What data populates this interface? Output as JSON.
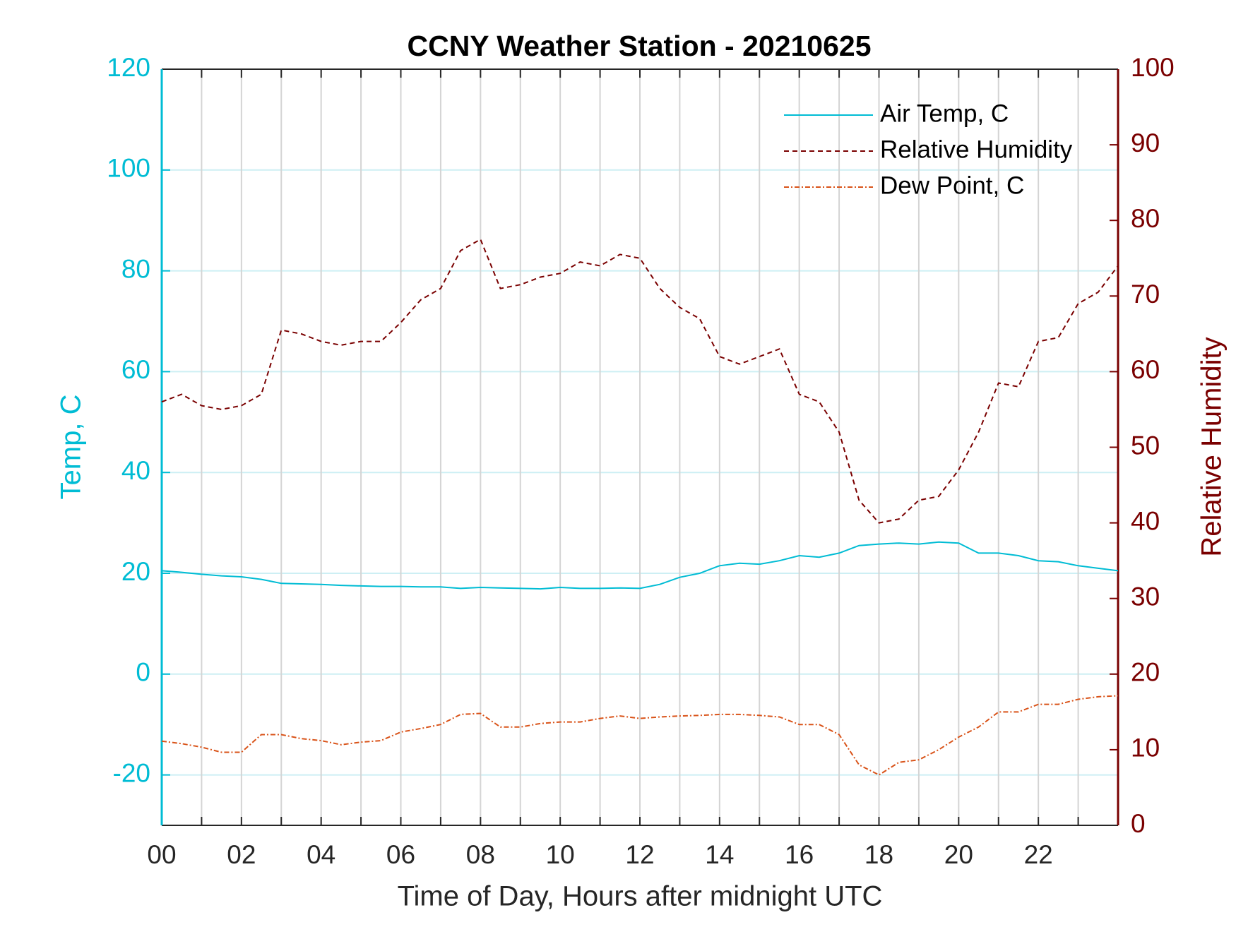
{
  "chart_data": {
    "type": "line",
    "title": "CCNY Weather Station - 20210625",
    "xlabel": "Time of Day, Hours after midnight UTC",
    "ylabel": "Temp, C",
    "y2label": "Relative Humidity",
    "xlim": [
      0,
      24
    ],
    "xticks": [
      {
        "value": 0,
        "label": "00"
      },
      {
        "value": 2,
        "label": "02"
      },
      {
        "value": 4,
        "label": "04"
      },
      {
        "value": 6,
        "label": "06"
      },
      {
        "value": 8,
        "label": "08"
      },
      {
        "value": 10,
        "label": "10"
      },
      {
        "value": 12,
        "label": "12"
      },
      {
        "value": 14,
        "label": "14"
      },
      {
        "value": 16,
        "label": "16"
      },
      {
        "value": 18,
        "label": "18"
      },
      {
        "value": 20,
        "label": "20"
      },
      {
        "value": 22,
        "label": "22"
      }
    ],
    "xminorticks": [
      1,
      3,
      5,
      7,
      9,
      11,
      13,
      15,
      17,
      19,
      21,
      23
    ],
    "ylim": [
      -30,
      120
    ],
    "yticks": [
      -20,
      0,
      20,
      40,
      60,
      80,
      100,
      120
    ],
    "y2lim": [
      0,
      100
    ],
    "y2ticks": [
      0,
      10,
      20,
      30,
      40,
      50,
      60,
      70,
      80,
      90,
      100
    ],
    "y_color": "#00bcd4",
    "y2_color": "#7a0000",
    "grid": true,
    "legend": "upper right",
    "x": [
      0,
      0.5,
      1,
      1.5,
      2,
      2.5,
      3,
      3.5,
      4,
      4.5,
      5,
      5.5,
      6,
      6.5,
      7,
      7.5,
      8,
      8.5,
      9,
      9.5,
      10,
      10.5,
      11,
      11.5,
      12,
      12.5,
      13,
      13.5,
      14,
      14.5,
      15,
      15.5,
      16,
      16.5,
      17,
      17.5,
      18,
      18.5,
      19,
      19.5,
      20,
      20.5,
      21,
      21.5,
      22,
      22.5,
      23,
      23.5,
      24
    ],
    "series": [
      {
        "name": "Air Temp, C",
        "color": "#00bcd4",
        "dash": "solid",
        "values": [
          20.5,
          20.2,
          19.8,
          19.5,
          19.3,
          18.8,
          18.0,
          17.9,
          17.8,
          17.6,
          17.5,
          17.4,
          17.4,
          17.3,
          17.3,
          17.0,
          17.2,
          17.1,
          17.0,
          16.9,
          17.2,
          17.0,
          17.0,
          17.1,
          17.0,
          17.8,
          19.2,
          20.0,
          21.5,
          22.0,
          21.8,
          22.5,
          23.5,
          23.2,
          24.0,
          25.5,
          25.8,
          26.0,
          25.8,
          26.2,
          26.0,
          24.0,
          24.0,
          23.5,
          22.5,
          22.3,
          21.5,
          21.0,
          20.5
        ]
      },
      {
        "name": "Relative Humidity",
        "color": "#7a0000",
        "dash": "dashed",
        "axis": "y2",
        "values": [
          56,
          57,
          55.5,
          55,
          55.5,
          57,
          65.5,
          65,
          64,
          63.5,
          64,
          64,
          66.5,
          69.5,
          71,
          76,
          77.5,
          71,
          71.5,
          72.5,
          73,
          74.5,
          74,
          75.5,
          75,
          71,
          68.5,
          67,
          62,
          61,
          62,
          63,
          57,
          56,
          52,
          43,
          40,
          40.5,
          43,
          43.5,
          47,
          52,
          58.5,
          58,
          64,
          64.5,
          69,
          70.5,
          74
        ]
      },
      {
        "name": "Dew Point, C",
        "color": "#d95319",
        "dash": "dashdot",
        "values": [
          -13.3,
          -13.8,
          -14.5,
          -15.5,
          -15.5,
          -12,
          -12,
          -12.8,
          -13.2,
          -14,
          -13.5,
          -13.2,
          -11.5,
          -10.8,
          -10,
          -8,
          -7.8,
          -10.5,
          -10.5,
          -9.8,
          -9.5,
          -9.5,
          -8.8,
          -8.3,
          -8.8,
          -8.5,
          -8.3,
          -8.2,
          -8,
          -8,
          -8.2,
          -8.5,
          -10,
          -10,
          -12,
          -18,
          -20,
          -17.5,
          -17,
          -15,
          -12.5,
          -10.5,
          -7.5,
          -7.5,
          -6,
          -6,
          -5,
          -4.5,
          -4.3
        ]
      }
    ]
  }
}
